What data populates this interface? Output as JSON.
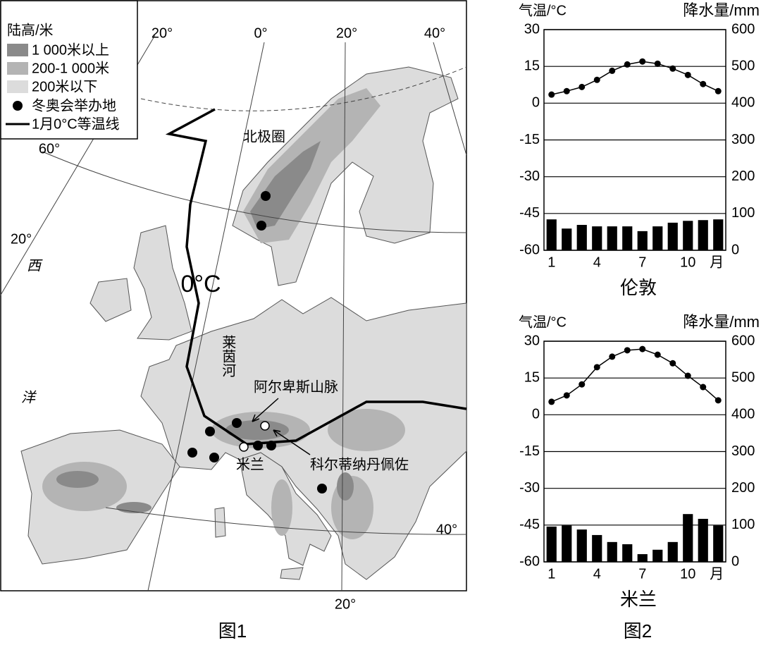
{
  "map": {
    "legend": {
      "title": "陆高/米",
      "items": [
        "1 000米以上",
        "200-1 000米",
        "200米以下",
        "冬奥会举办地",
        "1月0°C等温线"
      ]
    },
    "graticule_labels": [
      "20°",
      "0°",
      "20°",
      "40°",
      "60°",
      "20°",
      "40°",
      "20°"
    ],
    "ocean_label": [
      "西",
      "洋"
    ],
    "arctic_circle": "北极圈",
    "isotherm_label": "0°C",
    "river": "莱茵河",
    "mountains": "阿尔卑斯山脉",
    "cities": [
      "米兰",
      "科尔蒂纳丹佩佐"
    ],
    "caption": "图1"
  },
  "chart_data": [
    {
      "type": "climate",
      "title": "伦敦",
      "categories": [
        "1",
        null,
        null,
        "4",
        null,
        null,
        "7",
        null,
        null,
        "10",
        null,
        null
      ],
      "x_label": "月",
      "y_label": "气温/°C",
      "y2_label": "降水量/mm",
      "ylim": [
        -60,
        30
      ],
      "yticks": [
        -60,
        -45,
        -30,
        -15,
        0,
        15,
        30
      ],
      "y2lim": [
        0,
        600
      ],
      "y2ticks": [
        0,
        100,
        200,
        300,
        400,
        500,
        600
      ],
      "grid": true,
      "series": [
        {
          "type": "line",
          "color": "#000000",
          "values": [
            3.5,
            4.9,
            6.6,
            9.5,
            13.2,
            15.8,
            17,
            16.1,
            14.1,
            11.5,
            7.8,
            4.9
          ]
        },
        {
          "type": "bar",
          "axis": "y2",
          "color": "#000000",
          "values": [
            84,
            59,
            69,
            65,
            65,
            65,
            52,
            65,
            75,
            80,
            82,
            84
          ]
        }
      ]
    },
    {
      "type": "climate",
      "title": "米兰",
      "categories": [
        "1",
        null,
        null,
        "4",
        null,
        null,
        "7",
        null,
        null,
        "10",
        null,
        null
      ],
      "x_label": "月",
      "y_label": "气温/°C",
      "y2_label": "降水量/mm",
      "ylim": [
        -60,
        30
      ],
      "yticks": [
        -60,
        -45,
        -30,
        -15,
        0,
        15,
        30
      ],
      "y2lim": [
        0,
        600
      ],
      "y2ticks": [
        0,
        100,
        200,
        300,
        400,
        500,
        600
      ],
      "grid": true,
      "series": [
        {
          "type": "line",
          "color": "#000000",
          "values": [
            5.3,
            7.9,
            12.4,
            19.4,
            23.7,
            26.3,
            26.8,
            24.5,
            21,
            15.9,
            11.3,
            5.9
          ]
        },
        {
          "type": "bar",
          "axis": "y2",
          "color": "#000000",
          "values": [
            96,
            99,
            88,
            73,
            54,
            48,
            21,
            33,
            54,
            130,
            117,
            99
          ]
        }
      ]
    }
  ],
  "figure_caption": "图2"
}
